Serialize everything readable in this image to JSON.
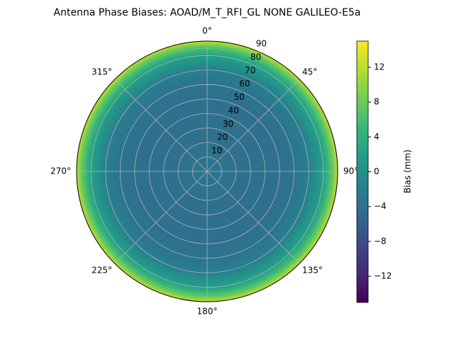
{
  "chart_data": {
    "type": "polar_contour",
    "title": "Antenna Phase Biases: AOAD/M_T_RFI_GL NONE GALILEO-E5a",
    "colorbar_label": "Bias (mm)",
    "colormap": "viridis",
    "theta_zero": "N",
    "theta_direction": "clockwise",
    "theta_ticks": [
      {
        "value": 0,
        "label": "0°"
      },
      {
        "value": 45,
        "label": "45°"
      },
      {
        "value": 90,
        "label": "90°"
      },
      {
        "value": 135,
        "label": "135°"
      },
      {
        "value": 180,
        "label": "180°"
      },
      {
        "value": 225,
        "label": "225°"
      },
      {
        "value": 270,
        "label": "270°"
      },
      {
        "value": 315,
        "label": "315°"
      }
    ],
    "rlim": [
      0,
      90
    ],
    "rticks": [
      10,
      20,
      30,
      40,
      50,
      60,
      70,
      80,
      90
    ],
    "r": [
      0,
      10,
      20,
      30,
      40,
      50,
      60,
      70,
      80,
      85,
      90
    ],
    "values": [
      -3.5,
      -3.5,
      -4,
      -4,
      -4,
      -4,
      -3.5,
      -2,
      2,
      6,
      12
    ],
    "clim": [
      -15,
      15
    ],
    "cticks": [
      {
        "value": -12,
        "label": "−12"
      },
      {
        "value": -8,
        "label": "−8"
      },
      {
        "value": -4,
        "label": "−4"
      },
      0,
      4,
      8,
      12
    ],
    "grid": true
  }
}
